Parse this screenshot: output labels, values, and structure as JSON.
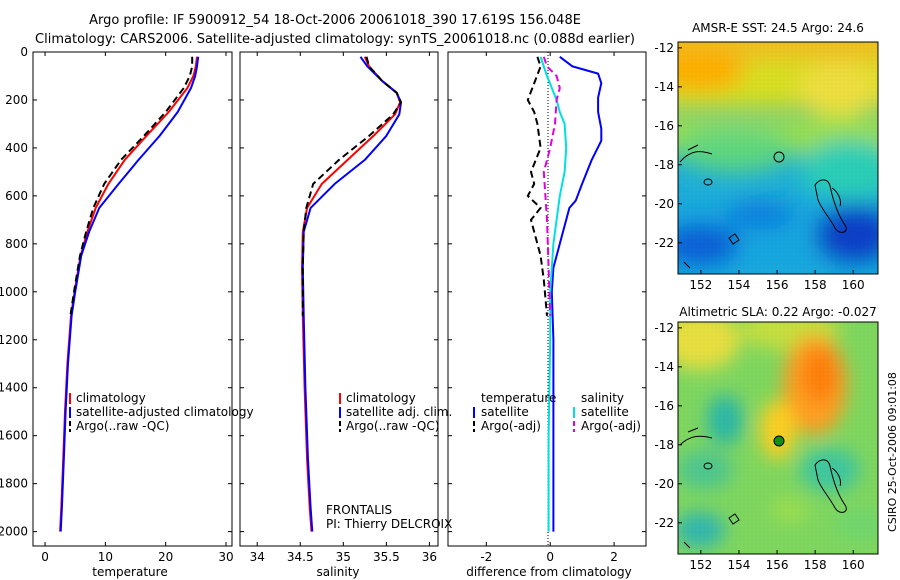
{
  "title": {
    "line1": "Argo profile: IF 5900912_54 18-Oct-2006 20061018_390 17.619S 156.048E",
    "line2": "Climatology: CARS2006. Satellite-adjusted climatology: synTS_20061018.nc (0.088d earlier)"
  },
  "colors": {
    "climatology": "#ff0000",
    "satellite": "#0000ff",
    "argo": "#000000",
    "satellite_diff_salinity": "#00e0e0",
    "argo_diff_salinity": "#e000e0"
  },
  "footer": {
    "frontalis": "FRONTALIS",
    "pi": "PI: Thierry DELCROIX",
    "stamp": "CSIRO 25-Oct-2006 09:01:08"
  },
  "chart_data": [
    {
      "type": "line",
      "name": "temperature",
      "xlabel": "temperature",
      "ylabel": "",
      "xlim": [
        -2,
        31
      ],
      "ylim": [
        0,
        2060
      ],
      "xticks": [
        0,
        10,
        20,
        30
      ],
      "yticks": [
        0,
        200,
        400,
        600,
        800,
        1000,
        1200,
        1400,
        1600,
        1800,
        2000
      ],
      "legend": [
        "climatology",
        "satellite-adjusted climatology",
        "Argo(..raw -QC)"
      ],
      "series": [
        {
          "name": "climatology",
          "style": "solid",
          "color": "#ff0000",
          "x": [
            25.2,
            25.0,
            24.6,
            23.6,
            20.5,
            16.8,
            13.2,
            10.5,
            8.4,
            7.0,
            5.9,
            4.9,
            4.3,
            3.7,
            3.3,
            3.0,
            2.7,
            2.5
          ],
          "y": [
            20,
            60,
            100,
            150,
            250,
            350,
            450,
            550,
            650,
            750,
            850,
            1000,
            1100,
            1300,
            1500,
            1700,
            1900,
            2000
          ]
        },
        {
          "name": "satellite-adjusted climatology",
          "style": "solid",
          "color": "#0000ff",
          "x": [
            25.4,
            25.2,
            24.9,
            24.2,
            22.0,
            19.0,
            15.5,
            12.2,
            9.0,
            7.3,
            6.0,
            5.0,
            4.4,
            3.8,
            3.4,
            3.1,
            2.8,
            2.6
          ],
          "y": [
            20,
            60,
            100,
            150,
            250,
            350,
            450,
            550,
            650,
            750,
            850,
            1000,
            1100,
            1300,
            1500,
            1700,
            1900,
            2000
          ]
        },
        {
          "name": "Argo(..raw -QC)",
          "style": "dashed",
          "color": "#000000",
          "x": [
            24.4,
            24.4,
            24.0,
            23.0,
            20.0,
            16.4,
            12.6,
            9.8,
            8.0,
            6.8,
            5.8,
            4.8,
            4.2
          ],
          "y": [
            20,
            60,
            100,
            150,
            250,
            350,
            450,
            550,
            650,
            750,
            850,
            1000,
            1100
          ]
        }
      ]
    },
    {
      "type": "line",
      "name": "salinity",
      "xlabel": "salinity",
      "ylabel": "",
      "xlim": [
        33.8,
        36.1
      ],
      "ylim": [
        0,
        2060
      ],
      "xticks": [
        34,
        34.5,
        35,
        35.5,
        36
      ],
      "yticks": [
        0,
        200,
        400,
        600,
        800,
        1000,
        1200,
        1400,
        1600,
        1800,
        2000
      ],
      "legend": [
        "climatology",
        "satellite adj. clim.",
        "Argo(..raw -QC)"
      ],
      "series": [
        {
          "name": "climatology",
          "style": "solid",
          "color": "#ff0000",
          "x": [
            35.25,
            35.3,
            35.45,
            35.62,
            35.66,
            35.6,
            35.35,
            35.05,
            34.75,
            34.58,
            34.53,
            34.52,
            34.53,
            34.55,
            34.58,
            34.61,
            34.63
          ],
          "y": [
            20,
            60,
            120,
            170,
            210,
            260,
            350,
            450,
            550,
            650,
            750,
            900,
            1100,
            1400,
            1700,
            1900,
            2000
          ]
        },
        {
          "name": "satellite adj. clim.",
          "style": "solid",
          "color": "#0000ff",
          "x": [
            35.2,
            35.28,
            35.45,
            35.62,
            35.67,
            35.65,
            35.5,
            35.25,
            34.9,
            34.62,
            34.54,
            34.53,
            34.54,
            34.56,
            34.59,
            34.62,
            34.64
          ],
          "y": [
            20,
            60,
            120,
            170,
            210,
            260,
            350,
            450,
            550,
            650,
            750,
            900,
            1100,
            1400,
            1700,
            1900,
            2000
          ]
        },
        {
          "name": "Argo(..raw -QC)",
          "style": "dashed",
          "color": "#000000",
          "x": [
            35.27,
            35.3,
            35.45,
            35.62,
            35.67,
            35.58,
            35.3,
            34.95,
            34.65,
            34.57,
            34.54,
            34.53,
            34.53
          ],
          "y": [
            20,
            60,
            120,
            170,
            210,
            260,
            350,
            450,
            550,
            650,
            750,
            900,
            1100
          ]
        }
      ]
    },
    {
      "type": "line",
      "name": "difference from climatology",
      "xlabel": "difference from climatology",
      "ylabel": "",
      "xlim": [
        -3.2,
        3.0
      ],
      "ylim": [
        0,
        2060
      ],
      "xticks": [
        -2,
        0,
        2
      ],
      "yticks": [
        0,
        200,
        400,
        600,
        800,
        1000,
        1200,
        1400,
        1600,
        1800,
        2000
      ],
      "legend_groups": [
        {
          "title": "temperature",
          "items": [
            "satellite",
            "Argo(-adj)"
          ]
        },
        {
          "title": "salinity",
          "items": [
            "satellite",
            "Argo(-adj)"
          ]
        }
      ],
      "series": [
        {
          "name": "temperature satellite",
          "style": "solid",
          "color": "#0000ff",
          "x": [
            0.3,
            0.7,
            1.5,
            1.6,
            1.5,
            1.5,
            1.6,
            1.6,
            1.3,
            1.0,
            0.8,
            0.6,
            0.5,
            0.3,
            0.1,
            0.05,
            0.1,
            0.1,
            0.1,
            0.1
          ],
          "y": [
            20,
            60,
            90,
            130,
            190,
            250,
            320,
            370,
            450,
            550,
            620,
            650,
            700,
            800,
            900,
            1000,
            1200,
            1500,
            1800,
            2000
          ]
        },
        {
          "name": "temperature Argo(-adj)",
          "style": "dashed",
          "color": "#000000",
          "x": [
            -0.4,
            -0.3,
            -0.7,
            -0.5,
            -0.4,
            -0.3,
            -0.6,
            -0.5,
            -0.7,
            -0.3,
            -0.6,
            -0.5,
            -0.4,
            -0.3,
            -0.2,
            -0.1
          ],
          "y": [
            20,
            60,
            200,
            250,
            300,
            400,
            500,
            550,
            600,
            650,
            700,
            750,
            800,
            850,
            950,
            1100
          ]
        },
        {
          "name": "salinity satellite",
          "style": "solid",
          "color": "#00e0e0",
          "x": [
            -0.3,
            -0.2,
            -0.1,
            0.05,
            0.2,
            0.3,
            0.45,
            0.5,
            0.45,
            0.3,
            0.1,
            0.0,
            0.0,
            -0.05,
            -0.05
          ],
          "y": [
            20,
            60,
            100,
            150,
            200,
            250,
            300,
            400,
            500,
            600,
            800,
            1000,
            1200,
            1600,
            2000
          ]
        },
        {
          "name": "salinity Argo(-adj)",
          "style": "dashed",
          "color": "#e000e0",
          "x": [
            -0.2,
            -0.1,
            0.2,
            0.3,
            0.2,
            0.15,
            0.0,
            -0.2,
            -0.15,
            -0.1,
            -0.05,
            0.0
          ],
          "y": [
            20,
            60,
            100,
            150,
            200,
            300,
            400,
            500,
            600,
            700,
            900,
            1100
          ]
        }
      ]
    },
    {
      "type": "heatmap",
      "name": "AMSR-E SST map",
      "title": "AMSR-E SST: 24.5 Argo: 24.6",
      "xlim": [
        150.8,
        161.3
      ],
      "ylim": [
        -23.6,
        -11.7
      ],
      "xticks": [
        152,
        154,
        156,
        158,
        160
      ],
      "yticks": [
        -12,
        -14,
        -16,
        -18,
        -20,
        -22
      ],
      "argo_position": {
        "lon": 156.048,
        "lat": -17.619
      }
    },
    {
      "type": "heatmap",
      "name": "Altimetric SLA map",
      "title": "Altimetric SLA: 0.22 Argo: -0.027",
      "xlim": [
        150.8,
        161.3
      ],
      "ylim": [
        -23.6,
        -11.7
      ],
      "xticks": [
        152,
        154,
        156,
        158,
        160
      ],
      "yticks": [
        -12,
        -14,
        -16,
        -18,
        -20,
        -22
      ],
      "argo_position": {
        "lon": 156.048,
        "lat": -17.619
      }
    }
  ]
}
